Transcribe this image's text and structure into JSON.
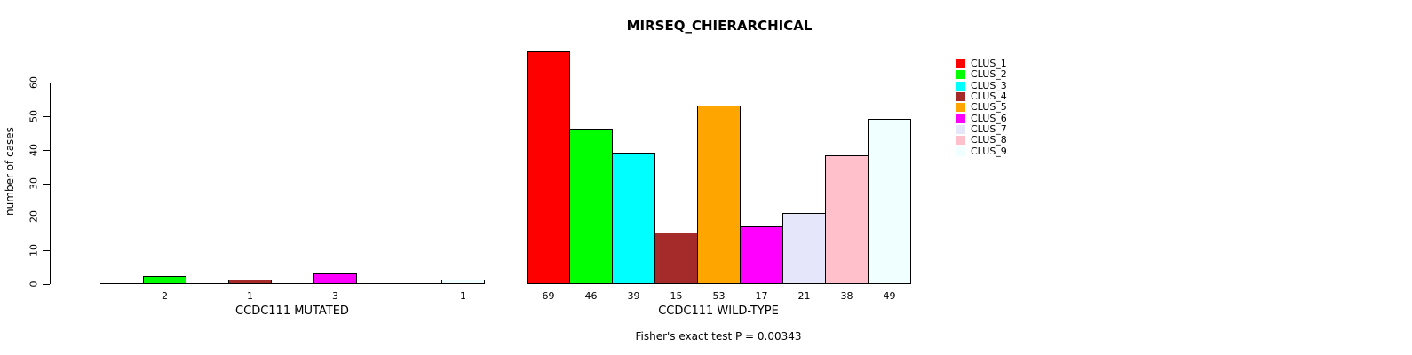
{
  "chart_data": {
    "type": "bar",
    "title": "MIRSEQ_CHIERARCHICAL",
    "ylabel": "number of cases",
    "ylim": [
      0,
      60
    ],
    "yticks": [
      0,
      10,
      20,
      30,
      40,
      50,
      60
    ],
    "grid": false,
    "legend_position": "right",
    "clusters": [
      {
        "label": "CLUS_1",
        "color": "#FF0000"
      },
      {
        "label": "CLUS_2",
        "color": "#00FF00"
      },
      {
        "label": "CLUS_3",
        "color": "#00FFFF"
      },
      {
        "label": "CLUS_4",
        "color": "#A52A2A"
      },
      {
        "label": "CLUS_5",
        "color": "#FFA500"
      },
      {
        "label": "CLUS_6",
        "color": "#FF00FF"
      },
      {
        "label": "CLUS_7",
        "color": "#E6E6FA"
      },
      {
        "label": "CLUS_8",
        "color": "#FFC0CB"
      },
      {
        "label": "CLUS_9",
        "color": "#F0FFFF"
      }
    ],
    "groups": [
      {
        "xlabel": "CCDC111 MUTATED",
        "values": [
          0,
          2,
          0,
          1,
          0,
          3,
          0,
          0,
          1
        ]
      },
      {
        "xlabel": "CCDC111 WILD-TYPE",
        "values": [
          69,
          46,
          39,
          15,
          53,
          17,
          21,
          38,
          49
        ]
      }
    ],
    "footnote": "Fisher's exact test P = 0.00343"
  }
}
